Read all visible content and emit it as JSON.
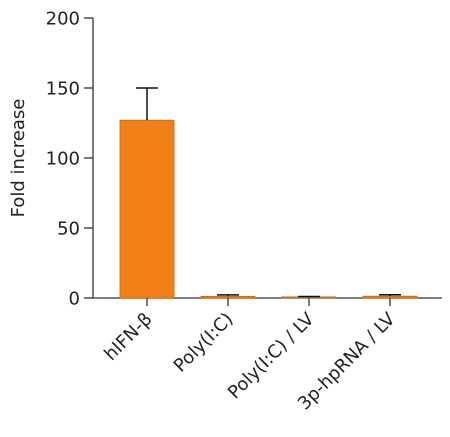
{
  "chart_data": {
    "type": "bar",
    "title": "",
    "xlabel": "",
    "ylabel": "Fold increase",
    "ylim": [
      0,
      200
    ],
    "yticks": [
      0,
      50,
      100,
      150,
      200
    ],
    "categories": [
      "hIFN-β",
      "Poly(I:C)",
      "Poly(I:C) / LV",
      "3p-hpRNA / LV"
    ],
    "values": [
      127,
      1.2,
      0.8,
      1.3
    ],
    "errors": [
      23,
      1.0,
      0.3,
      1.0
    ],
    "grid": false,
    "legend": "none"
  },
  "colors": {
    "bar": "#F28017",
    "bar_edge": "#C9660E",
    "axis": "#333333",
    "error": "#111111"
  }
}
